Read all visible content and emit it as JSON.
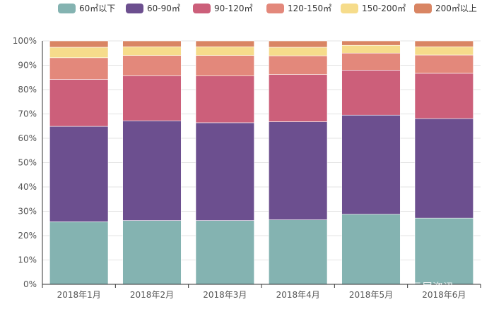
{
  "watermark": "云居资讯",
  "chart_data": {
    "type": "bar",
    "stacked": true,
    "categories": [
      "2018年1月",
      "2018年2月",
      "2018年3月",
      "2018年4月",
      "2018年5月",
      "2018年6月"
    ],
    "y_ticks": [
      "0%",
      "10%",
      "20%",
      "30%",
      "40%",
      "50%",
      "60%",
      "70%",
      "80%",
      "90%",
      "100%"
    ],
    "ylim": [
      0,
      100
    ],
    "grid": true,
    "legend_position": "top",
    "series": [
      {
        "name": "60㎡以下",
        "color": "#84b3b1",
        "values": [
          25.7,
          26.2,
          26.2,
          26.5,
          28.8,
          27.2
        ]
      },
      {
        "name": "60-90㎡",
        "color": "#6c4f8f",
        "values": [
          39.2,
          41.0,
          40.2,
          40.3,
          40.7,
          40.9
        ]
      },
      {
        "name": "90-120㎡",
        "color": "#cc5f7a",
        "values": [
          19.3,
          18.5,
          19.2,
          19.4,
          18.5,
          18.6
        ]
      },
      {
        "name": "120-150㎡",
        "color": "#e3887b",
        "values": [
          8.9,
          8.3,
          8.4,
          7.7,
          7.0,
          7.5
        ]
      },
      {
        "name": "150-200㎡",
        "color": "#f6dc8b",
        "values": [
          4.3,
          3.6,
          3.6,
          3.5,
          3.2,
          3.4
        ]
      },
      {
        "name": "200㎡以上",
        "color": "#d98563",
        "values": [
          2.6,
          2.4,
          2.4,
          2.6,
          1.8,
          2.4
        ]
      }
    ]
  }
}
